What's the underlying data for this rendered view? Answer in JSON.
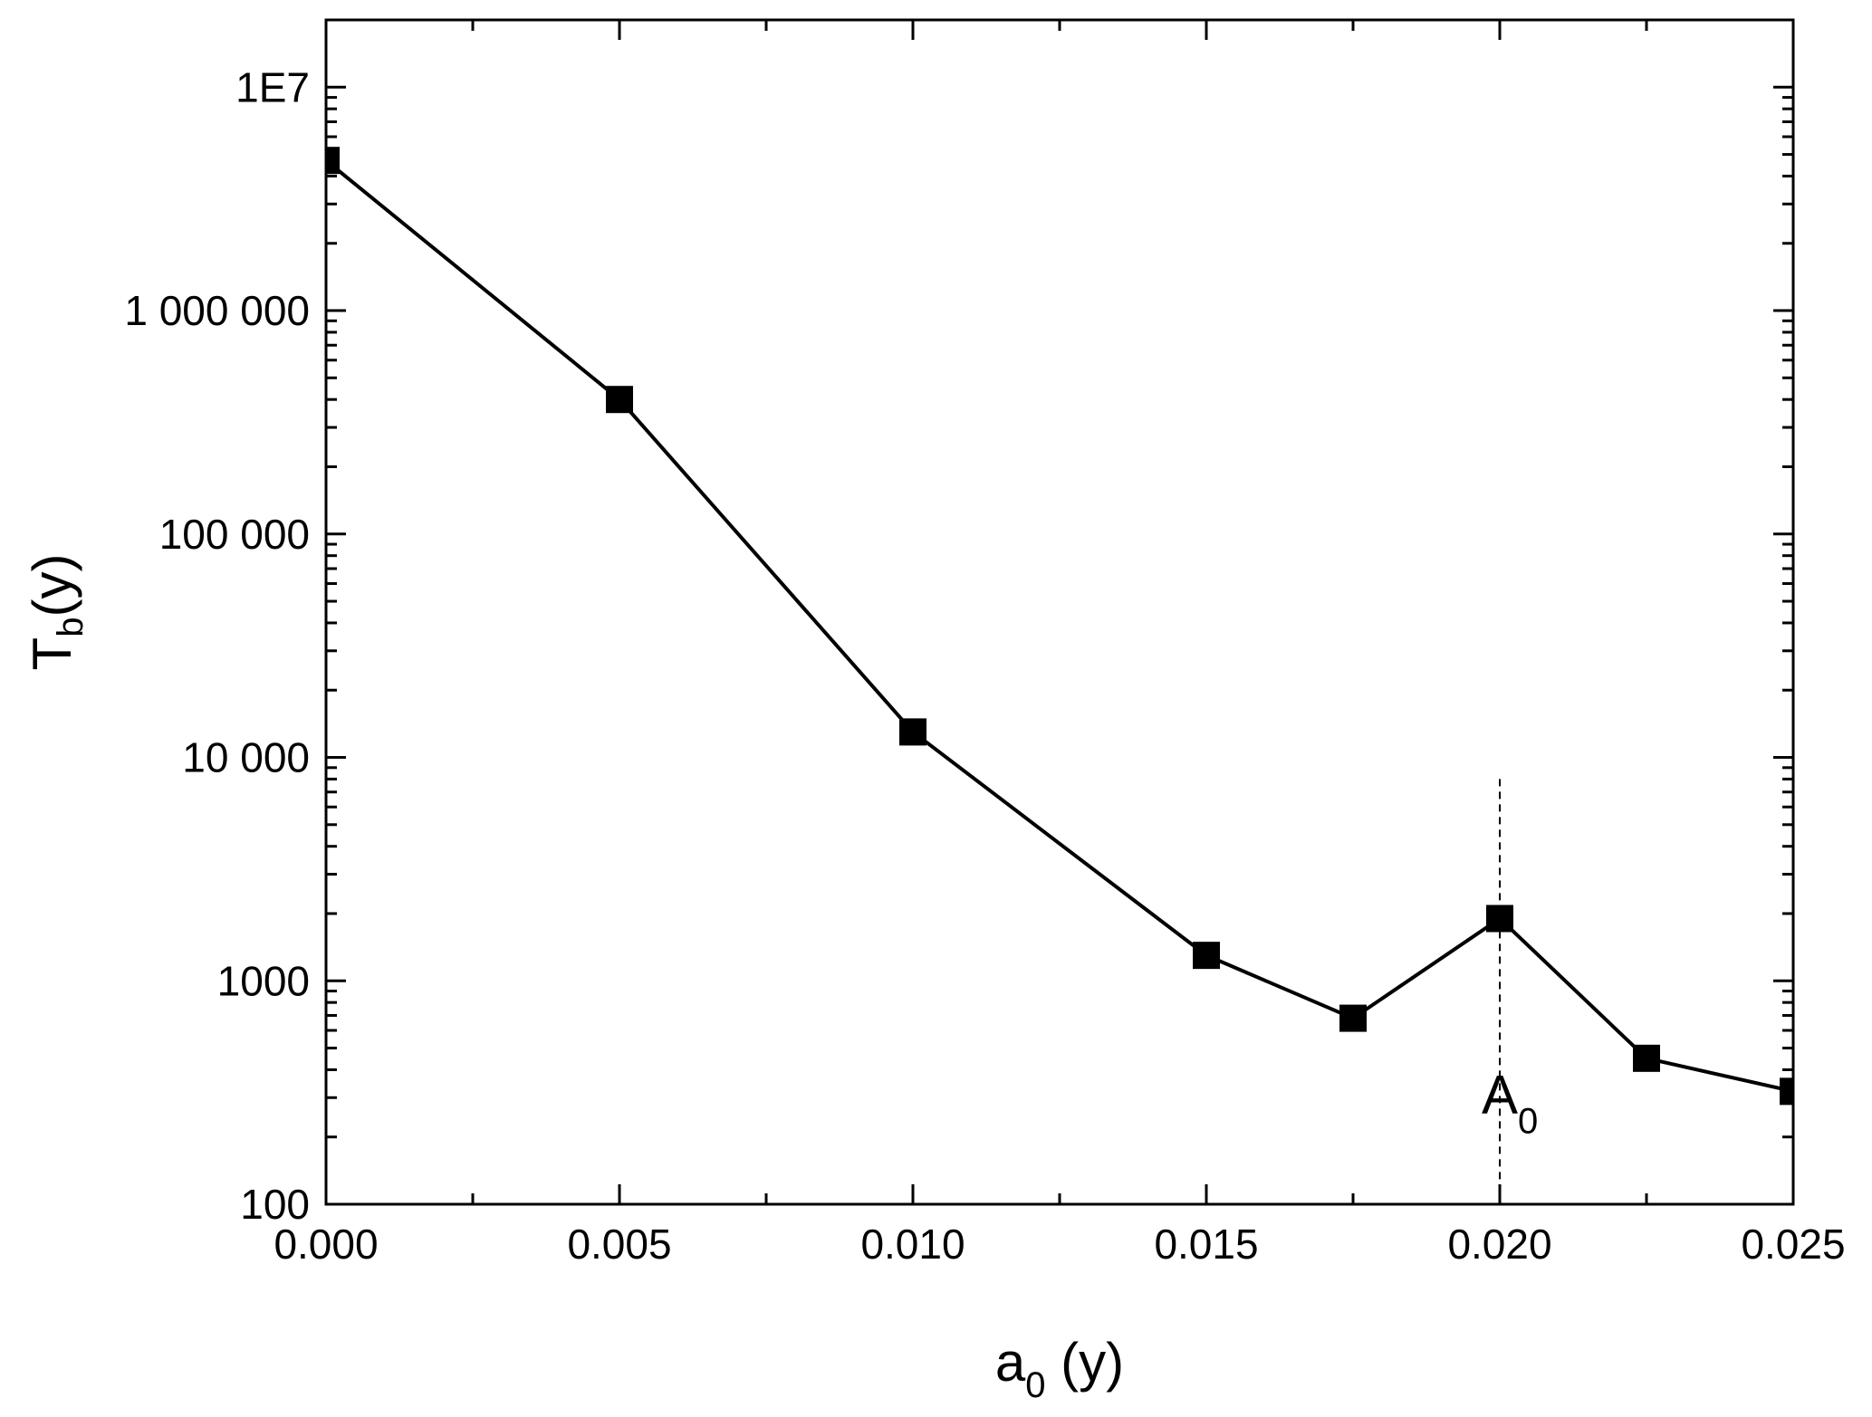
{
  "chart_data": {
    "type": "line",
    "marker": "square",
    "line_color": "#000000",
    "background": "#ffffff",
    "xlabel": {
      "main": "a",
      "sub": "0",
      "suffix": " (y)"
    },
    "ylabel": {
      "main": "T",
      "sub": "b",
      "suffix": "(y)"
    },
    "x_ticks": [
      "0.000",
      "0.005",
      "0.010",
      "0.015",
      "0.020",
      "0.025"
    ],
    "y_ticks": [
      "100",
      "1000",
      "10 000",
      "100 000",
      "1 000 000",
      "1E7"
    ],
    "xlim": [
      0,
      0.025
    ],
    "ylim": [
      100,
      20000000
    ],
    "y_scale": "log",
    "grid": false,
    "series": [
      {
        "x": [
          0.0,
          0.005,
          0.01,
          0.015,
          0.0175,
          0.02,
          0.0225,
          0.025
        ],
        "y": [
          4700000,
          400000,
          13000,
          1300,
          680,
          1900,
          450,
          320
        ]
      }
    ],
    "annotations": [
      {
        "type": "vline",
        "x": 0.02,
        "y_from": 100,
        "y_to": 8000,
        "style": "dashed"
      },
      {
        "type": "text",
        "main": "A",
        "sub": "0",
        "x": 0.02,
        "y": 280
      }
    ]
  }
}
